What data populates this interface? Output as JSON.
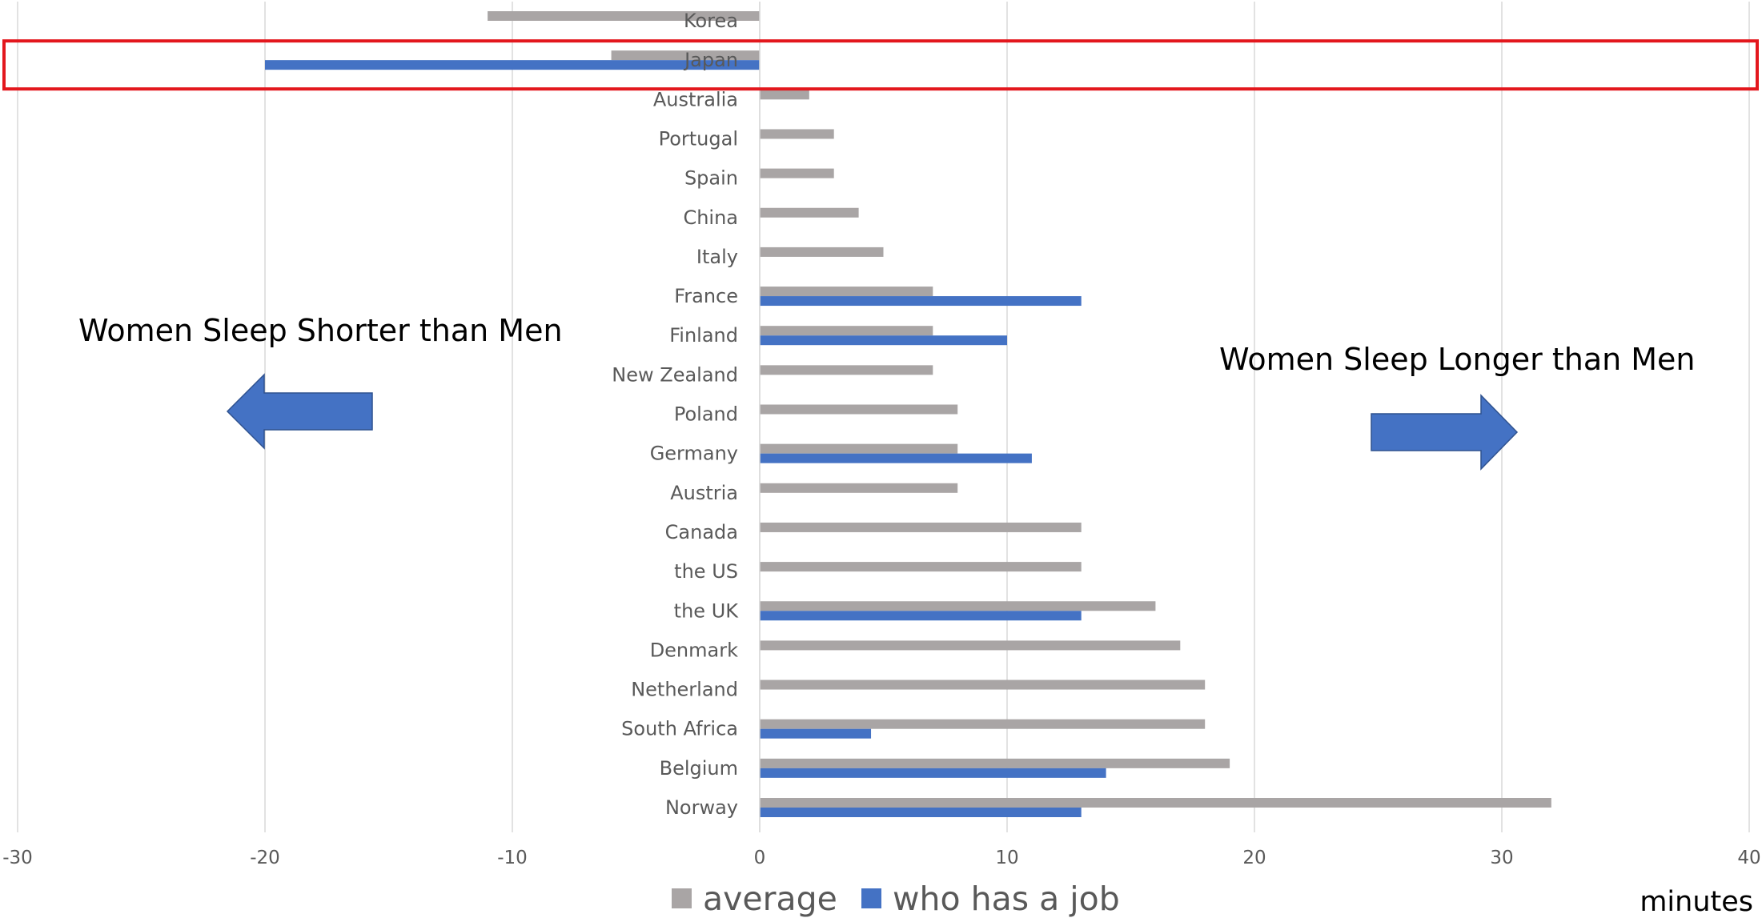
{
  "chart_data": {
    "type": "bar",
    "orientation": "horizontal",
    "categories": [
      "Korea",
      "Japan",
      "Australia",
      "Portugal",
      "Spain",
      "China",
      "Italy",
      "France",
      "Finland",
      "New Zealand",
      "Poland",
      "Germany",
      "Austria",
      "Canada",
      "the US",
      "the UK",
      "Denmark",
      "Netherland",
      "South Africa",
      "Belgium",
      "Norway"
    ],
    "series": [
      {
        "name": "average",
        "color": "#a9a5a5",
        "values": [
          -11,
          -6,
          2,
          3,
          3,
          4,
          5,
          7,
          7,
          7,
          8,
          8,
          8,
          13,
          13,
          16,
          17,
          18,
          18,
          19,
          32
        ]
      },
      {
        "name": "who has a job",
        "color": "#4472c4",
        "values": [
          null,
          -20,
          null,
          null,
          null,
          null,
          null,
          13,
          10,
          null,
          null,
          11,
          null,
          null,
          null,
          13,
          null,
          null,
          4.5,
          14,
          13
        ]
      }
    ],
    "xlim": [
      -30,
      40
    ],
    "xticks": [
      "-30",
      "-20",
      "-10",
      "0",
      "10",
      "20",
      "30",
      "40"
    ],
    "xlabel": "minutes",
    "grid": "vertical",
    "legend_position": "bottom",
    "annotations": {
      "left_text": "Women Sleep Shorter than Men",
      "right_text": "Women Sleep Longer than Men",
      "highlight_category": "Japan",
      "highlight_color": "#e3171d",
      "arrow_color": "#4472c4"
    }
  }
}
